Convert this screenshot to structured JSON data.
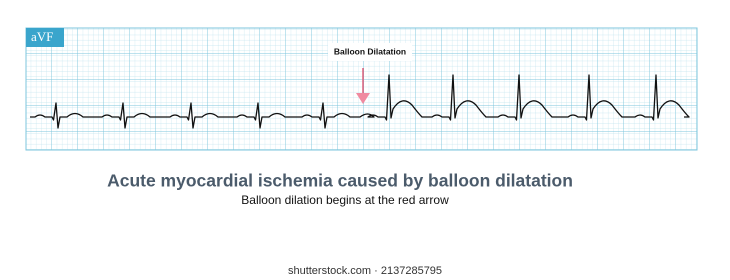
{
  "strip": {
    "lead": "aVF",
    "annotation": "Balloon Dilatation"
  },
  "caption": {
    "title": "Acute myocardial ischemia caused by balloon dilatation",
    "subtitle": "Balloon dilation begins at the red arrow"
  },
  "watermark": "shutterstock.com · 2137285795"
}
